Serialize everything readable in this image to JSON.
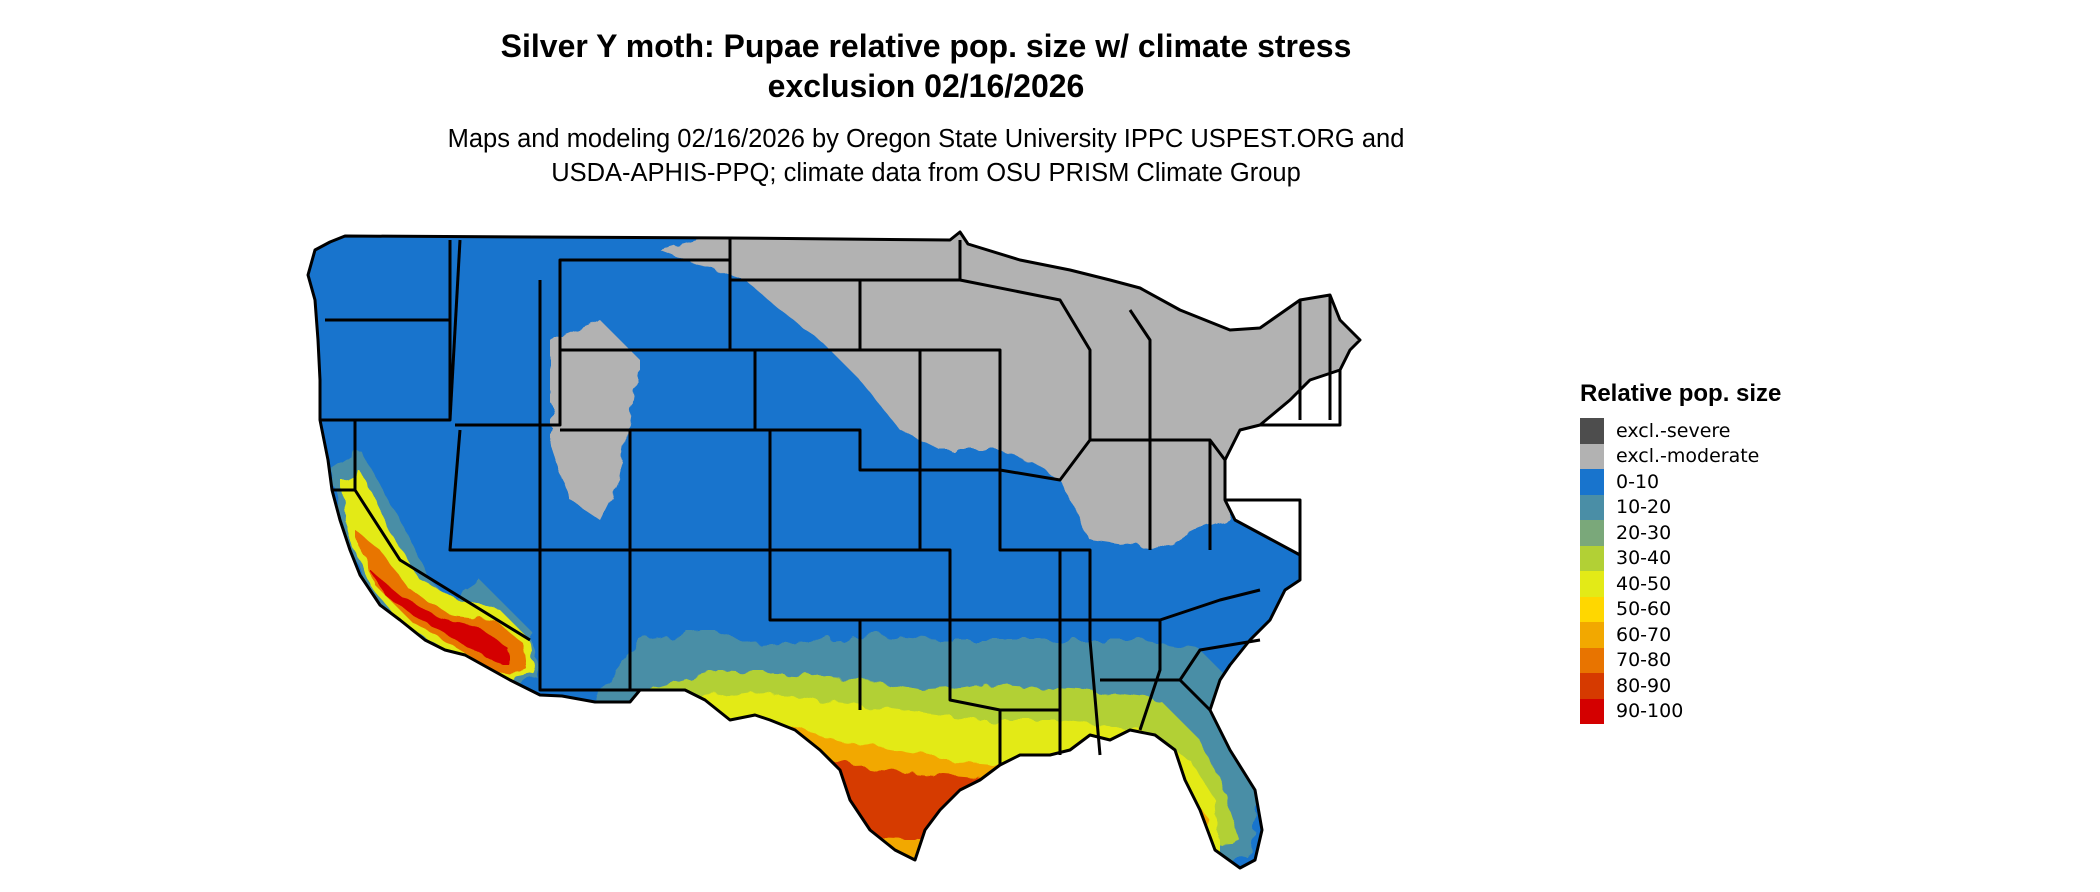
{
  "title": {
    "line1": "Silver Y moth: Pupae relative pop. size w/ climate stress",
    "line2": "exclusion 02/16/2026"
  },
  "subtitle": {
    "line1": "Maps and modeling 02/16/2026 by Oregon State University IPPC USPEST.ORG and",
    "line2": "USDA-APHIS-PPQ; climate data from OSU PRISM Climate Group"
  },
  "legend": {
    "title": "Relative pop. size",
    "items": [
      {
        "label": "excl.-severe",
        "color": "#4d4d4d"
      },
      {
        "label": "excl.-moderate",
        "color": "#b2b2b2"
      },
      {
        "label": "0-10",
        "color": "#1874cd"
      },
      {
        "label": "10-20",
        "color": "#4a8ea6"
      },
      {
        "label": "20-30",
        "color": "#7aa87a"
      },
      {
        "label": "30-40",
        "color": "#b2d035"
      },
      {
        "label": "40-50",
        "color": "#e3ea17"
      },
      {
        "label": "50-60",
        "color": "#ffd700"
      },
      {
        "label": "60-70",
        "color": "#f2a800"
      },
      {
        "label": "70-80",
        "color": "#e87400"
      },
      {
        "label": "80-90",
        "color": "#d63a00"
      },
      {
        "label": "90-100",
        "color": "#d40000"
      }
    ]
  },
  "map": {
    "region": "Contiguous United States",
    "boundaries": "state outlines",
    "colors": {
      "excluded": "#b2b2b2",
      "low": "#1874cd",
      "mid": "#4a8ea6",
      "high": "#d63a00"
    }
  }
}
